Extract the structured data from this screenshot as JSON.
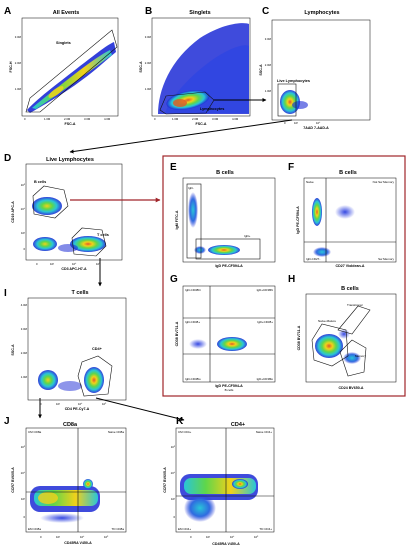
{
  "panels": {
    "A": {
      "letter": "A",
      "title": "All Events",
      "xaxis": "FSC-A",
      "yaxis": "FSC-H",
      "gate": "Singlets",
      "xticks": [
        "0",
        "1.0M",
        "2.0M",
        "3.0M",
        "4.0M"
      ],
      "yticks": [
        "1.0M",
        "2.0M",
        "3.0M"
      ]
    },
    "B": {
      "letter": "B",
      "title": "Singlets",
      "xaxis": "FSC-A",
      "yaxis": "SSC-A",
      "gate": "Lymphocytes",
      "xticks": [
        "0",
        "1.0M",
        "2.0M",
        "3.0M",
        "4.0M"
      ],
      "yticks": [
        "1.0M",
        "2.0M",
        "3.0M"
      ]
    },
    "C": {
      "letter": "C",
      "title": "Lymphocytes",
      "xaxis": "7AAD 7-AAD-A",
      "yaxis": "SSC-A",
      "gate": "Live Lymphocytes",
      "xticks": [
        "0",
        "10³",
        "10⁴"
      ],
      "yticks": [
        "1.0M",
        "2.0M",
        "3.0M"
      ]
    },
    "D": {
      "letter": "D",
      "title": "Live Lymphocytes",
      "xaxis": "CD3 APC-H7-A",
      "yaxis": "CD19 APC-A",
      "gate1": "B cells",
      "gate2": "T cells",
      "xticks": [
        "0",
        "10³",
        "10⁴",
        "10⁵"
      ],
      "yticks": [
        "0",
        "10³",
        "10⁴",
        "10⁵"
      ]
    },
    "E": {
      "letter": "E",
      "title": "B cells",
      "xaxis": "IgD PE-CF594-A",
      "yaxis": "IgM FITC-A",
      "gate1": "IgD-",
      "gate2": "IgD+"
    },
    "F": {
      "letter": "F",
      "title": "B cells",
      "xaxis": "CD27 Violdean-A",
      "yaxis": "IgD PE-CF594-A",
      "q1": "Naive",
      "q2": "Not Sw Memory",
      "q3": "IgD-CD27-",
      "q4": "Sw Memory"
    },
    "G": {
      "letter": "G",
      "title": "",
      "subtitle": "B cells",
      "xaxis": "IgD PE-CF594-A",
      "yaxis": "CD38 BV711-A",
      "q1": "IgD-CD38hi",
      "q2": "IgD+CD38hi",
      "q3": "IgD-CD38+",
      "q4": "IgD+CD38+",
      "q5": "IgD-CD38lo",
      "q6": "IgD+CD38lo"
    },
    "H": {
      "letter": "H",
      "title": "B cells",
      "xaxis": "CD24 BV650-A",
      "yaxis": "CD38 BV711-A",
      "gate1": "Transitional",
      "gate2": "Naive-Mature",
      "gate3": "Memory"
    },
    "I": {
      "letter": "I",
      "title": "T cells",
      "xaxis": "CD4 PE-Cy7-A",
      "yaxis": "SSC-A",
      "gate": "CD4+",
      "xticks": [
        "0",
        "10³",
        "10⁴",
        "10⁵"
      ],
      "yticks": [
        "1.0M",
        "2.0M",
        "3.0M",
        "4.0M"
      ]
    },
    "J": {
      "letter": "J",
      "title": "CD8a",
      "xaxis": "CD45RA V450-A",
      "yaxis": "CCR7 BV605-A",
      "q1": "CM CD8a",
      "q2": "Naive CD8a",
      "q3": "EM CD8a",
      "q4": "TD CD8a",
      "xticks": [
        "0",
        "10³",
        "10⁴",
        "10⁵"
      ],
      "yticks": [
        "0",
        "10³",
        "10⁴",
        "10⁵"
      ]
    },
    "K": {
      "letter": "K",
      "title": "CD4+",
      "xaxis": "CD45RA V450-A",
      "yaxis": "CCR7 BV605-A",
      "q1": "CM CD4+",
      "q2": "Naive CD4+",
      "q3": "EM CD4+",
      "q4": "TD CD4+",
      "xticks": [
        "0",
        "10³",
        "10⁴",
        "10⁵"
      ],
      "yticks": [
        "0",
        "10³",
        "10⁴",
        "10⁵"
      ]
    }
  },
  "colors": {
    "accent": "#a0252a",
    "density_low": "#1d2bd6",
    "density_mid": "#29c5d8",
    "density_high": "#f2d11a",
    "density_peak": "#e0572a"
  }
}
